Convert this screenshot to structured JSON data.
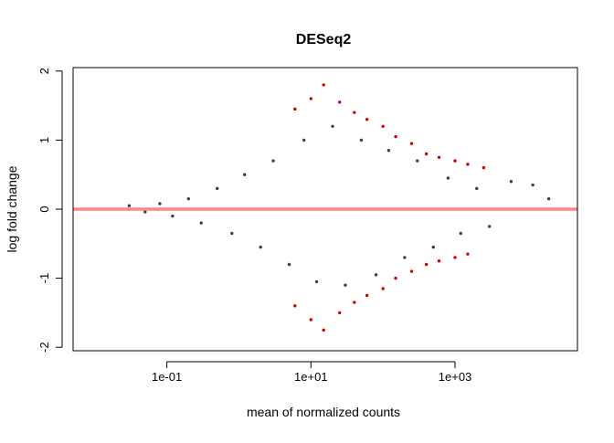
{
  "chart_data": {
    "type": "scatter",
    "title": "DESeq2",
    "xlabel": "mean of normalized counts",
    "ylabel": "log fold change",
    "x_scale": "log10",
    "xlim": [
      0.005,
      50000
    ],
    "ylim": [
      -2.05,
      2.05
    ],
    "x_ticks": [
      {
        "value": 0.1,
        "label": "1e-01"
      },
      {
        "value": 10,
        "label": "1e+01"
      },
      {
        "value": 1000,
        "label": "1e+03"
      }
    ],
    "y_ticks": [
      {
        "value": -2,
        "label": "-2"
      },
      {
        "value": -1,
        "label": "-1"
      },
      {
        "value": 0,
        "label": "0"
      },
      {
        "value": 1,
        "label": "1"
      },
      {
        "value": 2,
        "label": "2"
      }
    ],
    "reference_line": {
      "y": 0,
      "color": "#ff6e7a"
    },
    "grid": false,
    "colors": {
      "not_significant": "#404040",
      "significant": "#cc0000"
    },
    "out_of_range_markers": {
      "above": "triangle-up",
      "below": "triangle-down",
      "clipped_at": [
        2,
        -2
      ]
    },
    "series": [
      {
        "status": "not significant",
        "color": "#404040",
        "x": [
          0.03,
          0.05,
          0.08,
          0.12,
          0.2,
          0.3,
          0.5,
          0.8,
          1.2,
          2,
          3,
          5,
          8,
          12,
          20,
          30,
          50,
          80,
          120,
          200,
          300,
          500,
          800,
          1200,
          2000,
          3000,
          6000,
          12000,
          20000
        ],
        "y": [
          0.05,
          -0.04,
          0.08,
          -0.1,
          0.15,
          -0.2,
          0.3,
          -0.35,
          0.5,
          -0.55,
          0.7,
          -0.8,
          1.0,
          -1.05,
          1.2,
          -1.1,
          1.0,
          -0.95,
          0.85,
          -0.7,
          0.7,
          -0.55,
          0.45,
          -0.35,
          0.3,
          -0.25,
          0.4,
          0.35,
          0.15
        ]
      },
      {
        "status": "significant",
        "color": "#cc0000",
        "x": [
          6,
          10,
          15,
          25,
          40,
          60,
          100,
          150,
          250,
          400,
          600,
          1000,
          1500,
          2500,
          6,
          10,
          15,
          25,
          40,
          60,
          100,
          150,
          250,
          400,
          600,
          1000,
          1500
        ],
        "y": [
          1.45,
          1.6,
          1.8,
          1.55,
          1.4,
          1.3,
          1.2,
          1.05,
          0.95,
          0.8,
          0.75,
          0.7,
          0.65,
          0.6,
          -1.4,
          -1.6,
          -1.75,
          -1.5,
          -1.35,
          -1.25,
          -1.15,
          -1.0,
          -0.9,
          -0.8,
          -0.75,
          -0.7,
          -0.65
        ]
      }
    ]
  }
}
